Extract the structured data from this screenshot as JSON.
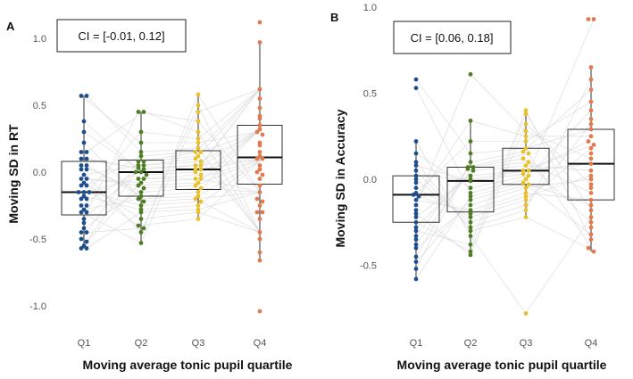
{
  "chart_data": [
    {
      "type": "box-dot",
      "panel": "A",
      "xlabel": "Moving average tonic pupil quartile",
      "ylabel": "Moving SD in RT",
      "annotation": "CI = [-0.01, 0.12]",
      "categories": [
        "Q1",
        "Q2",
        "Q3",
        "Q4"
      ],
      "yticks": [
        "1.0",
        "0.5",
        "0.0",
        "-0.5",
        "-1.0"
      ],
      "ytick_values": [
        1.0,
        0.5,
        0.0,
        -0.5,
        -1.0
      ],
      "ylim": [
        -1.1,
        1.2
      ],
      "colors": [
        "#1f4e8c",
        "#4e7d24",
        "#e8c12c",
        "#e07b50"
      ],
      "boxes": [
        {
          "q1": -0.32,
          "median": -0.15,
          "q3": 0.08,
          "wmin": -0.57,
          "wmax": 0.57
        },
        {
          "q1": -0.18,
          "median": 0.0,
          "q3": 0.09,
          "wmin": -0.53,
          "wmax": 0.45
        },
        {
          "q1": -0.13,
          "median": 0.02,
          "q3": 0.16,
          "wmin": -0.35,
          "wmax": 0.58
        },
        {
          "q1": -0.09,
          "median": 0.11,
          "q3": 0.35,
          "wmin": -0.66,
          "wmax": 0.97
        }
      ],
      "points": [
        [
          0.57,
          0.57,
          0.38,
          0.3,
          0.22,
          0.15,
          0.15,
          0.1,
          0.1,
          0.05,
          0.05,
          0.02,
          0.02,
          -0.02,
          -0.05,
          -0.05,
          -0.08,
          -0.1,
          -0.1,
          -0.15,
          -0.15,
          -0.15,
          -0.18,
          -0.2,
          -0.2,
          -0.25,
          -0.25,
          -0.28,
          -0.3,
          -0.3,
          -0.35,
          -0.38,
          -0.42,
          -0.45,
          -0.45,
          -0.5,
          -0.52,
          -0.55,
          -0.57,
          -0.57
        ],
        [
          0.45,
          0.45,
          0.3,
          0.22,
          0.15,
          0.12,
          0.08,
          0.08,
          0.05,
          0.05,
          0.03,
          0.02,
          0.0,
          0.0,
          -0.02,
          -0.05,
          -0.05,
          -0.08,
          -0.1,
          -0.12,
          -0.15,
          -0.18,
          -0.2,
          -0.22,
          -0.25,
          -0.28,
          -0.3,
          -0.35,
          -0.4,
          -0.42,
          -0.45,
          -0.53
        ],
        [
          0.58,
          0.5,
          0.45,
          0.38,
          0.3,
          0.25,
          0.22,
          0.18,
          0.15,
          0.15,
          0.12,
          0.1,
          0.08,
          0.05,
          0.05,
          0.02,
          0.02,
          0.0,
          -0.02,
          -0.05,
          -0.05,
          -0.08,
          -0.1,
          -0.12,
          -0.15,
          -0.18,
          -0.2,
          -0.22,
          -0.25,
          -0.28,
          -0.3,
          -0.35
        ],
        [
          1.12,
          0.97,
          0.62,
          0.55,
          0.48,
          0.42,
          0.4,
          0.35,
          0.32,
          0.3,
          0.28,
          0.22,
          0.2,
          0.15,
          0.12,
          0.1,
          0.1,
          0.05,
          0.02,
          0.0,
          -0.02,
          -0.05,
          -0.1,
          -0.15,
          -0.2,
          -0.22,
          -0.25,
          -0.3,
          -0.3,
          -0.35,
          -0.45,
          -0.5,
          -0.6,
          -0.66,
          -1.04
        ]
      ]
    },
    {
      "type": "box-dot",
      "panel": "B",
      "xlabel": "Moving average tonic pupil quartile",
      "ylabel": "Moving SD in Accuracy",
      "annotation": "CI = [0.06, 0.18]",
      "categories": [
        "Q1",
        "Q2",
        "Q3",
        "Q4"
      ],
      "yticks": [
        "1.0",
        "0.5",
        "0.0",
        "-0.5"
      ],
      "ytick_values": [
        1.0,
        0.5,
        0.0,
        -0.5
      ],
      "ylim": [
        -0.85,
        1.0
      ],
      "colors": [
        "#1f4e8c",
        "#4e7d24",
        "#e8c12c",
        "#e07b50"
      ],
      "boxes": [
        {
          "q1": -0.25,
          "median": -0.09,
          "q3": 0.02,
          "wmin": -0.58,
          "wmax": 0.22
        },
        {
          "q1": -0.19,
          "median": -0.01,
          "q3": 0.07,
          "wmin": -0.44,
          "wmax": 0.34
        },
        {
          "q1": -0.03,
          "median": 0.05,
          "q3": 0.18,
          "wmin": -0.22,
          "wmax": 0.4
        },
        {
          "q1": -0.12,
          "median": 0.09,
          "q3": 0.29,
          "wmin": -0.42,
          "wmax": 0.65
        }
      ],
      "points": [
        [
          0.58,
          0.53,
          0.22,
          0.15,
          0.1,
          0.08,
          0.05,
          0.02,
          0.0,
          -0.02,
          -0.05,
          -0.08,
          -0.09,
          -0.1,
          -0.12,
          -0.15,
          -0.18,
          -0.2,
          -0.22,
          -0.25,
          -0.28,
          -0.3,
          -0.33,
          -0.35,
          -0.38,
          -0.4,
          -0.45,
          -0.48,
          -0.52,
          -0.58
        ],
        [
          0.61,
          0.34,
          0.22,
          0.15,
          0.1,
          0.07,
          0.07,
          0.06,
          0.05,
          0.02,
          0.0,
          -0.01,
          -0.05,
          -0.08,
          -0.1,
          -0.12,
          -0.15,
          -0.18,
          -0.2,
          -0.22,
          -0.25,
          -0.28,
          -0.3,
          -0.33,
          -0.38,
          -0.42,
          -0.44
        ],
        [
          0.4,
          0.38,
          0.32,
          0.28,
          0.25,
          0.22,
          0.18,
          0.16,
          0.15,
          0.12,
          0.1,
          0.08,
          0.05,
          0.05,
          0.03,
          0.02,
          0.0,
          -0.02,
          -0.03,
          -0.05,
          -0.08,
          -0.1,
          -0.12,
          -0.15,
          -0.18,
          -0.22,
          -0.78
        ],
        [
          0.93,
          0.93,
          0.65,
          0.58,
          0.52,
          0.45,
          0.4,
          0.35,
          0.32,
          0.29,
          0.25,
          0.22,
          0.2,
          0.18,
          0.15,
          0.12,
          0.09,
          0.05,
          0.02,
          0.0,
          -0.03,
          -0.05,
          -0.08,
          -0.12,
          -0.15,
          -0.18,
          -0.22,
          -0.25,
          -0.28,
          -0.32,
          -0.35,
          -0.4,
          -0.42
        ]
      ]
    }
  ]
}
